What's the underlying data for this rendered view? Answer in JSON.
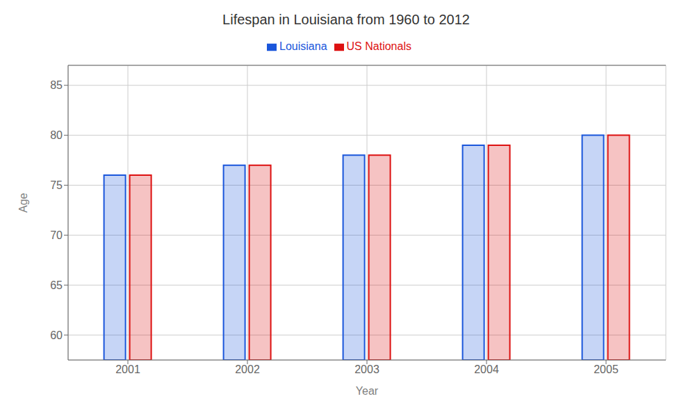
{
  "chart_data": {
    "type": "bar",
    "title": "Lifespan in Louisiana from 1960 to 2012",
    "x_label": "Year",
    "y_label": "Age",
    "categories": [
      2001,
      2002,
      2003,
      2004,
      2005
    ],
    "series": [
      {
        "name": "Louisiana",
        "color": "#1a56db",
        "values": [
          76.0,
          77.0,
          78.0,
          79.0,
          80.0
        ]
      },
      {
        "name": "US Nationals",
        "color": "#dd1111",
        "values": [
          76.0,
          77.0,
          78.0,
          79.0,
          80.0
        ]
      }
    ],
    "ylim": [
      57.5,
      87
    ],
    "yticks": [
      60,
      65,
      70,
      75,
      80,
      85
    ],
    "grid": true,
    "legend": "top"
  }
}
